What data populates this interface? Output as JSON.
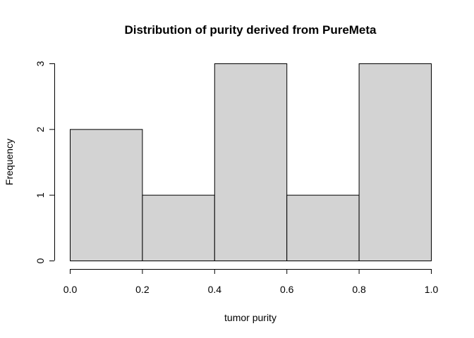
{
  "chart_data": {
    "type": "bar",
    "title": "Distribution of purity derived from PureMeta",
    "xlabel": "tumor purity",
    "ylabel": "Frequency",
    "bins": [
      {
        "start": 0.0,
        "end": 0.2,
        "count": 2
      },
      {
        "start": 0.2,
        "end": 0.4,
        "count": 1
      },
      {
        "start": 0.4,
        "end": 0.6,
        "count": 3
      },
      {
        "start": 0.6,
        "end": 0.8,
        "count": 1
      },
      {
        "start": 0.8,
        "end": 1.0,
        "count": 3
      }
    ],
    "xlim": [
      0,
      1
    ],
    "ylim": [
      0,
      3
    ],
    "xticks": [
      "0.0",
      "0.2",
      "0.4",
      "0.6",
      "0.8",
      "1.0"
    ],
    "yticks": [
      "0",
      "1",
      "2",
      "3"
    ],
    "bar_color": "#d3d3d3",
    "grid": false,
    "legend": "none"
  }
}
